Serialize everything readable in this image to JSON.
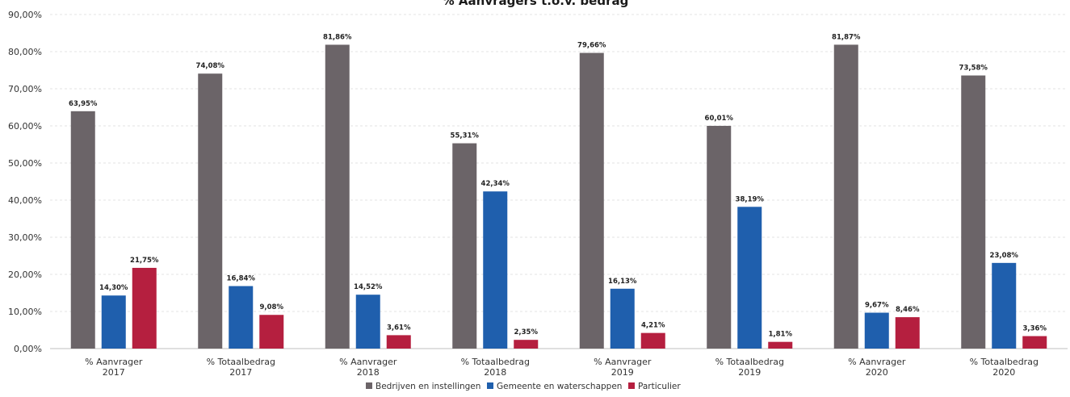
{
  "chart_data": {
    "type": "bar",
    "title": "% Aanvragers t.o.v. bedrag",
    "categories": [
      [
        "% Aanvrager",
        "2017"
      ],
      [
        "% Totaalbedrag",
        "2017"
      ],
      [
        "% Aanvrager",
        "2018"
      ],
      [
        "% Totaalbedrag",
        "2018"
      ],
      [
        "% Aanvrager",
        "2019"
      ],
      [
        "% Totaalbedrag",
        "2019"
      ],
      [
        "% Aanvrager",
        "2020"
      ],
      [
        "% Totaalbedrag",
        "2020"
      ]
    ],
    "series": [
      {
        "name": "Bedrijven en instellingen",
        "color": "#6b6468",
        "values": [
          63.95,
          74.08,
          81.86,
          55.31,
          79.66,
          60.01,
          81.87,
          73.58
        ],
        "labels": [
          "63,95%",
          "74,08%",
          "81,86%",
          "55,31%",
          "79,66%",
          "60,01%",
          "81,87%",
          "73,58%"
        ]
      },
      {
        "name": "Gemeente en waterschappen",
        "color": "#1f5fad",
        "values": [
          14.3,
          16.84,
          14.52,
          42.34,
          16.13,
          38.19,
          9.67,
          23.08
        ],
        "labels": [
          "14,30%",
          "16,84%",
          "14,52%",
          "42,34%",
          "16,13%",
          "38,19%",
          "9,67%",
          "23,08%"
        ]
      },
      {
        "name": "Particulier",
        "color": "#b51f3f",
        "values": [
          21.75,
          9.08,
          3.61,
          2.35,
          4.21,
          1.81,
          8.46,
          3.36
        ],
        "labels": [
          "21,75%",
          "9,08%",
          "3,61%",
          "2,35%",
          "4,21%",
          "1,81%",
          "8,46%",
          "3,36%"
        ]
      }
    ],
    "y_ticks": [
      {
        "value": 0,
        "label": "0,00%"
      },
      {
        "value": 10,
        "label": "10,00%"
      },
      {
        "value": 20,
        "label": "20,00%"
      },
      {
        "value": 30,
        "label": "30,00%"
      },
      {
        "value": 40,
        "label": "40,00%"
      },
      {
        "value": 50,
        "label": "50,00%"
      },
      {
        "value": 60,
        "label": "60,00%"
      },
      {
        "value": 70,
        "label": "70,00%"
      },
      {
        "value": 80,
        "label": "80,00%"
      },
      {
        "value": 90,
        "label": "90,00%"
      }
    ],
    "ylim": [
      0,
      90
    ],
    "grid": true,
    "legend_position": "bottom"
  }
}
